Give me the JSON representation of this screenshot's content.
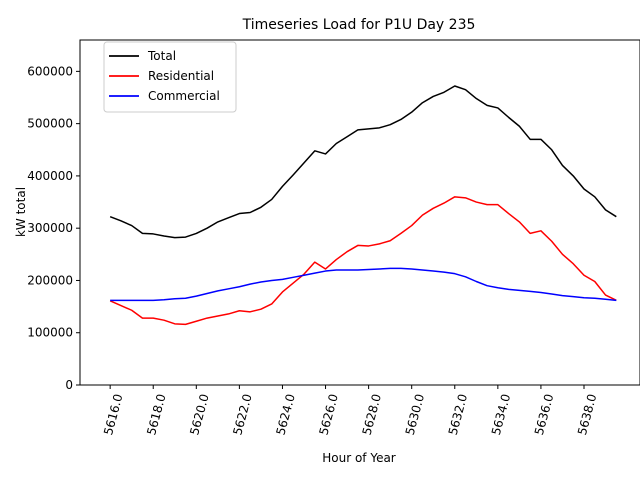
{
  "chart_data": {
    "type": "line",
    "title": "Timeseries Load for P1U   Day 235",
    "xlabel": "Hour of Year",
    "ylabel": "kW total",
    "xlim": [
      5614.6,
      5640.6
    ],
    "ylim": [
      0,
      660000
    ],
    "xticks": [
      5616,
      5618,
      5620,
      5622,
      5624,
      5626,
      5628,
      5630,
      5632,
      5634,
      5636,
      5638
    ],
    "xtick_labels": [
      "5616.0",
      "5618.0",
      "5620.0",
      "5622.0",
      "5624.0",
      "5626.0",
      "5628.0",
      "5630.0",
      "5632.0",
      "5634.0",
      "5636.0",
      "5638.0"
    ],
    "yticks": [
      0,
      100000,
      200000,
      300000,
      400000,
      500000,
      600000
    ],
    "ytick_labels": [
      "0",
      "100000",
      "200000",
      "300000",
      "400000",
      "500000",
      "600000"
    ],
    "legend_position": "top-left",
    "x": [
      5616.0,
      5616.5,
      5617.0,
      5617.5,
      5618.0,
      5618.5,
      5619.0,
      5619.5,
      5620.0,
      5620.5,
      5621.0,
      5621.5,
      5622.0,
      5622.5,
      5623.0,
      5623.5,
      5624.0,
      5624.5,
      5625.0,
      5625.5,
      5626.0,
      5626.5,
      5627.0,
      5627.5,
      5628.0,
      5628.5,
      5629.0,
      5629.5,
      5630.0,
      5630.5,
      5631.0,
      5631.5,
      5632.0,
      5632.5,
      5633.0,
      5633.5,
      5634.0,
      5634.5,
      5635.0,
      5635.5,
      5636.0,
      5636.5,
      5637.0,
      5637.5,
      5638.0,
      5638.5,
      5639.0,
      5639.5
    ],
    "series": [
      {
        "name": "Total",
        "color": "#000000",
        "values": [
          322000,
          314000,
          305000,
          290000,
          289000,
          285000,
          282000,
          283000,
          290000,
          300000,
          312000,
          320000,
          328000,
          330000,
          340000,
          355000,
          380000,
          402000,
          425000,
          448000,
          442000,
          462000,
          475000,
          488000,
          490000,
          492000,
          498000,
          508000,
          522000,
          540000,
          552000,
          560000,
          572000,
          565000,
          548000,
          535000,
          530000,
          512000,
          495000,
          470000,
          470000,
          450000,
          420000,
          400000,
          375000,
          360000,
          335000,
          322000
        ]
      },
      {
        "name": "Residential",
        "color": "#ff0000",
        "values": [
          161000,
          152000,
          143000,
          128000,
          128000,
          124000,
          117000,
          116000,
          122000,
          128000,
          132000,
          136000,
          142000,
          140000,
          145000,
          155000,
          178000,
          195000,
          212000,
          235000,
          222000,
          240000,
          255000,
          267000,
          266000,
          270000,
          276000,
          290000,
          305000,
          325000,
          338000,
          348000,
          360000,
          358000,
          350000,
          345000,
          345000,
          328000,
          312000,
          290000,
          295000,
          275000,
          250000,
          232000,
          210000,
          198000,
          172000,
          162000
        ]
      },
      {
        "name": "Commercial",
        "color": "#0000ff",
        "values": [
          162000,
          162000,
          162000,
          162000,
          162000,
          163000,
          165000,
          166000,
          170000,
          175000,
          180000,
          184000,
          188000,
          193000,
          197000,
          200000,
          202000,
          206000,
          210000,
          214000,
          218000,
          220000,
          220000,
          220000,
          221000,
          222000,
          223000,
          223000,
          222000,
          220000,
          218000,
          216000,
          213000,
          207000,
          198000,
          190000,
          186000,
          183000,
          181000,
          179000,
          177000,
          174000,
          171000,
          169000,
          167000,
          166000,
          164000,
          162000
        ]
      }
    ]
  }
}
